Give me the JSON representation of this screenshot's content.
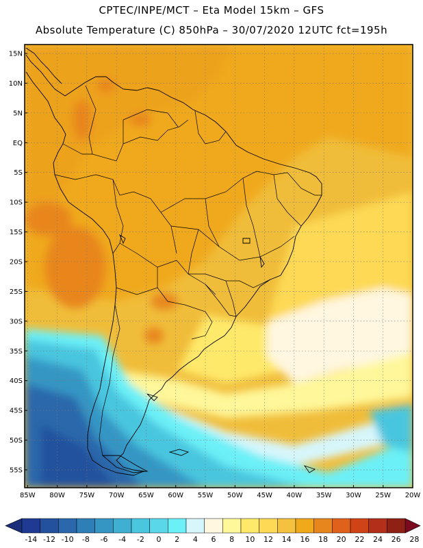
{
  "header": {
    "line1": "CPTEC/INPE/MCT –  Eta Model 15km – GFS",
    "line2": "Absolute Temperature (C) 850hPa – 30/07/2020 12UTC fct=195h"
  },
  "map": {
    "lat_labels": [
      "15N",
      "10N",
      "5N",
      "EQ",
      "5S",
      "10S",
      "15S",
      "20S",
      "25S",
      "30S",
      "35S",
      "40S",
      "45S",
      "50S",
      "55S"
    ],
    "lon_labels": [
      "85W",
      "80W",
      "75W",
      "70W",
      "65W",
      "60W",
      "55W",
      "50W",
      "45W",
      "40W",
      "35W",
      "30W",
      "25W",
      "20W"
    ],
    "lat_values": [
      15,
      10,
      5,
      0,
      -5,
      -10,
      -15,
      -20,
      -25,
      -30,
      -35,
      -40,
      -45,
      -50,
      -55
    ],
    "lon_values": [
      -85,
      -80,
      -75,
      -70,
      -65,
      -60,
      -55,
      -50,
      -45,
      -40,
      -35,
      -30,
      -25,
      -20
    ],
    "extent": {
      "lon_min": -85.5,
      "lon_max": -20,
      "lat_min": -58,
      "lat_max": 16.5
    },
    "grid": true,
    "units": "C"
  },
  "colorbar": {
    "labels": [
      "-14",
      "-12",
      "-10",
      "-8",
      "-6",
      "-4",
      "-2",
      "0",
      "2",
      "4",
      "6",
      "8",
      "10",
      "12",
      "14",
      "16",
      "18",
      "20",
      "22",
      "24",
      "26",
      "28"
    ],
    "colors": [
      "#1f3a93",
      "#24519e",
      "#2a68ab",
      "#2e7fb8",
      "#3596c4",
      "#3fb0d2",
      "#4ac6df",
      "#5ad8ea",
      "#6cf0f7",
      "#d7f6fb",
      "#fff7e0",
      "#fff79a",
      "#ffe96b",
      "#fdd955",
      "#f5c23f",
      "#f0a91a",
      "#e8861e",
      "#e0611a",
      "#cf4316",
      "#b2301a",
      "#8e2114"
    ],
    "low_color": "#1a2e7a",
    "high_color": "#7a0a20"
  }
}
